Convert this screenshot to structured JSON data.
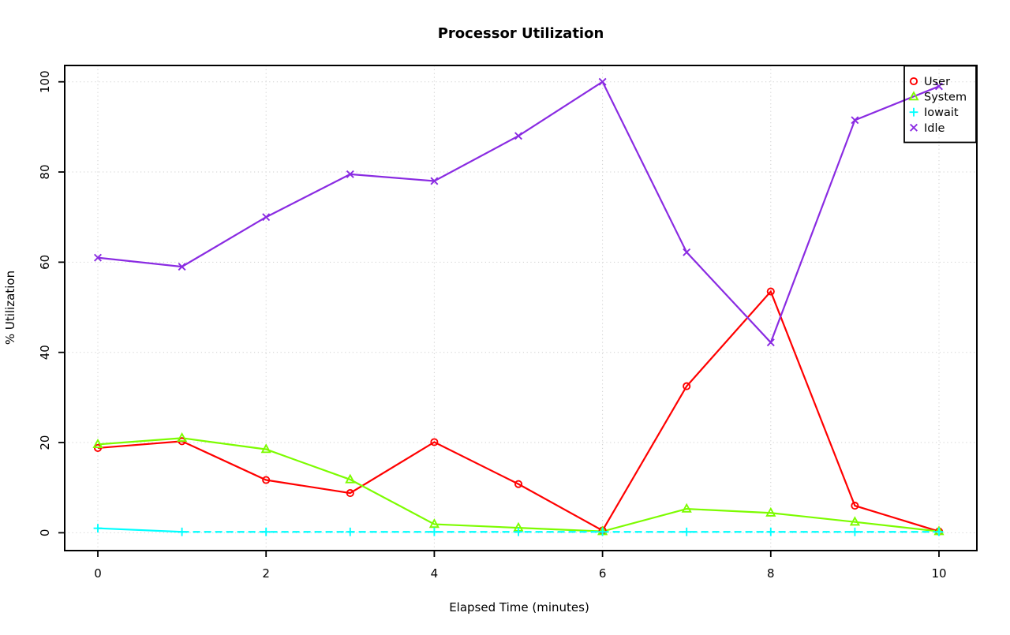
{
  "chart_data": {
    "type": "line",
    "title": "Processor Utilization",
    "xlabel": "Elapsed Time (minutes)",
    "ylabel": "% Utilization",
    "x": [
      0,
      1,
      2,
      3,
      4,
      5,
      6,
      7,
      8,
      9,
      10
    ],
    "x_ticks": [
      0,
      2,
      4,
      6,
      8,
      10
    ],
    "y_ticks": [
      0,
      20,
      40,
      60,
      80,
      100
    ],
    "xlim": [
      0,
      10
    ],
    "ylim": [
      0,
      100
    ],
    "grid": "dotted",
    "grid_color": "#CFCFCF",
    "axis_color": "#000000",
    "background": "#FFFFFF",
    "legend_position": "top-right",
    "series": [
      {
        "name": "User",
        "color": "#FF0000",
        "marker": "circle",
        "values": [
          18.8,
          20.3,
          11.7,
          8.8,
          20.1,
          10.8,
          0.5,
          32.5,
          53.5,
          6.0,
          0.3
        ]
      },
      {
        "name": "System",
        "color": "#7CFC00",
        "marker": "triangle",
        "values": [
          19.6,
          21.0,
          18.5,
          11.8,
          1.9,
          1.1,
          0.3,
          5.3,
          4.4,
          2.4,
          0.3
        ]
      },
      {
        "name": "Iowait",
        "color": "#00FFFF",
        "marker": "plus",
        "values": [
          1.0,
          0.2,
          0.2,
          0.2,
          0.2,
          0.2,
          0.2,
          0.2,
          0.2,
          0.2,
          0.2
        ],
        "dashed_after_first": true
      },
      {
        "name": "Idle",
        "color": "#8A2BE2",
        "marker": "x",
        "values": [
          61.0,
          59.0,
          70.0,
          79.5,
          78.0,
          88.0,
          100.0,
          62.2,
          42.2,
          91.5,
          99.0
        ]
      }
    ]
  }
}
